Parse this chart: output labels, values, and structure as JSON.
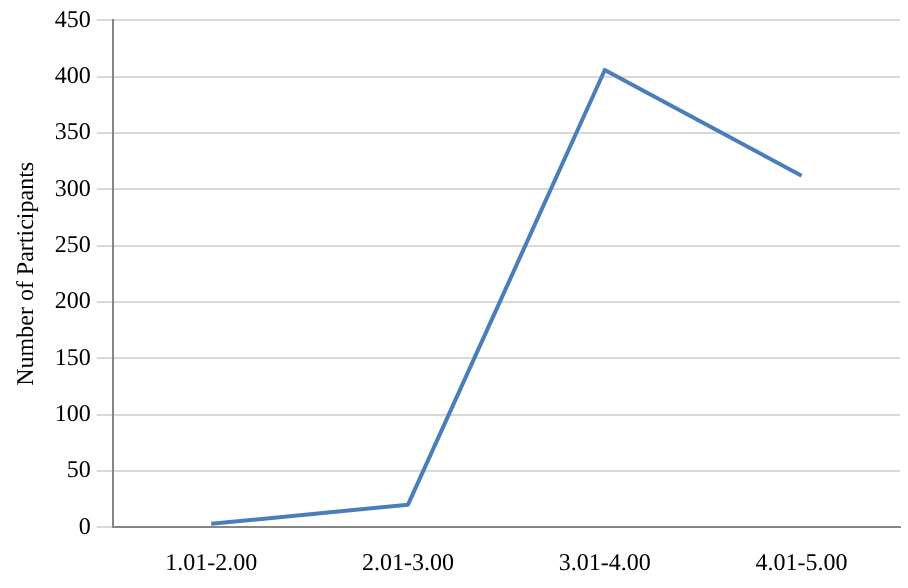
{
  "chart_data": {
    "type": "line",
    "ylabel": "Number of Participants",
    "categories": [
      "1.01-2.00",
      "2.01-3.00",
      "3.01-4.00",
      "4.01-5.00"
    ],
    "series": [
      {
        "color": "#4a7ebb",
        "values": [
          3,
          20,
          406,
          312
        ]
      }
    ],
    "ylim": [
      0,
      450
    ],
    "yticks": [
      0,
      50,
      100,
      150,
      200,
      250,
      300,
      350,
      400,
      450
    ],
    "grid": "y",
    "legend": false,
    "marker": "none",
    "line_style": "solid"
  }
}
